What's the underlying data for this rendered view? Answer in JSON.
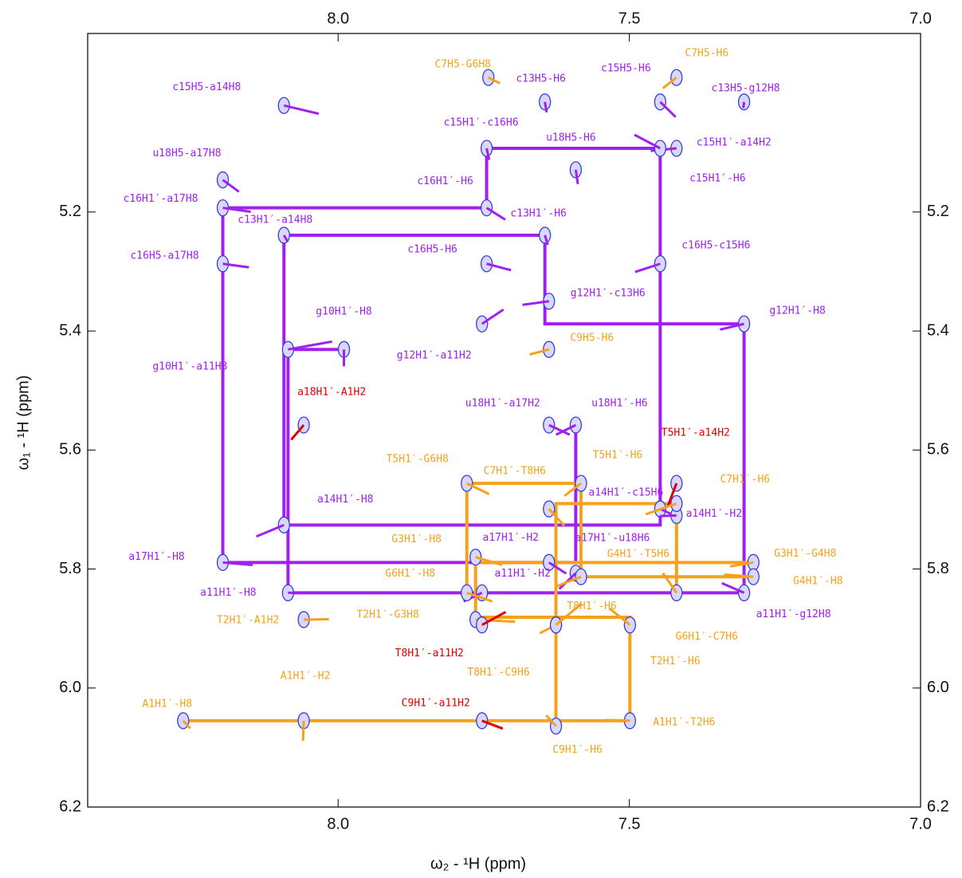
{
  "chart_data": {
    "type": "nmr2d",
    "x_label": "ω₂ - ¹H  (ppm)",
    "y_label": "ω₁ - ¹H  (ppm)",
    "xlim": [
      8.43,
      7.0
    ],
    "ylim": [
      4.9,
      6.2
    ],
    "xticks": [
      {
        "value": 8.0,
        "label": "8.0"
      },
      7.5,
      {
        "value": 7.0,
        "label": "7.0"
      }
    ],
    "yticks": [
      5.2,
      5.4,
      5.6,
      5.8,
      {
        "value": 6.0,
        "label": "6.0"
      },
      6.2
    ],
    "contour_color": "#3a3ae0",
    "peaks": [
      {
        "label": "c15H5-a14H8",
        "x": 8.093,
        "y": 5.021,
        "color": "#a020f0"
      },
      {
        "label": "u18H5-a17H8",
        "x": 8.198,
        "y": 5.146,
        "color": "#a020f0"
      },
      {
        "label": "c16H1′-a17H8",
        "x": 8.198,
        "y": 5.193,
        "color": "#a020f0"
      },
      {
        "label": "c13H1′-a14H8",
        "x": 8.093,
        "y": 5.239,
        "color": "#a020f0"
      },
      {
        "label": "c16H5-a17H8",
        "x": 8.198,
        "y": 5.287,
        "color": "#a020f0"
      },
      {
        "label": "g10H1′-H8",
        "x": 7.99,
        "y": 5.431,
        "color": "#a020f0"
      },
      {
        "label": "g10H1′-a11H8",
        "x": 8.086,
        "y": 5.431,
        "color": "#a020f0"
      },
      {
        "label": "a14H1′-H8",
        "x": 8.093,
        "y": 5.726,
        "color": "#a020f0"
      },
      {
        "label": "a17H1′-H8",
        "x": 8.198,
        "y": 5.789,
        "color": "#a020f0"
      },
      {
        "label": "a11H1′-H8",
        "x": 8.086,
        "y": 5.84,
        "color": "#a020f0"
      },
      {
        "label": "C7H5-G6H8",
        "x": 7.742,
        "y": 4.974,
        "color": "#f5a21b"
      },
      {
        "label": "c13H5-H6",
        "x": 7.645,
        "y": 5.015,
        "color": "#a020f0"
      },
      {
        "label": "c15H5-H6",
        "x": 7.447,
        "y": 5.015,
        "color": "#a020f0"
      },
      {
        "label": "C7H5-H6",
        "x": 7.419,
        "y": 4.974,
        "color": "#f5a21b"
      },
      {
        "label": "c13H5-g12H8",
        "x": 7.303,
        "y": 5.015,
        "color": "#a020f0"
      },
      {
        "label": "c15H1′-c16H6",
        "x": 7.745,
        "y": 5.093,
        "color": "#a020f0"
      },
      {
        "label": "u18H5-H6",
        "x": 7.592,
        "y": 5.129,
        "color": "#a020f0"
      },
      {
        "label": "c15H1′-a14H2",
        "x": 7.419,
        "y": 5.093,
        "color": "#a020f0"
      },
      {
        "label": "c15H1′-H6",
        "x": 7.447,
        "y": 5.093,
        "color": "#a020f0"
      },
      {
        "label": "c16H1′-H6",
        "x": 7.745,
        "y": 5.193,
        "color": "#a020f0"
      },
      {
        "label": "c13H1′-H6",
        "x": 7.645,
        "y": 5.239,
        "color": "#a020f0"
      },
      {
        "label": "c16H5-H6",
        "x": 7.745,
        "y": 5.287,
        "color": "#a020f0"
      },
      {
        "label": "c16H5-c15H6",
        "x": 7.447,
        "y": 5.287,
        "color": "#a020f0"
      },
      {
        "label": "g12H1′-c13H6",
        "x": 7.638,
        "y": 5.35,
        "color": "#a020f0"
      },
      {
        "label": "g12H1′-H8",
        "x": 7.303,
        "y": 5.388,
        "color": "#a020f0"
      },
      {
        "label": "g12H1′-a11H2",
        "x": 7.753,
        "y": 5.388,
        "color": "#a020f0"
      },
      {
        "label": "C9H5-H6",
        "x": 7.638,
        "y": 5.431,
        "color": "#f5a21b"
      },
      {
        "label": "a18H1′-A1H2",
        "x": 8.059,
        "y": 5.558,
        "color": "#e00000"
      },
      {
        "label": "u18H1′-a17H2",
        "x": 7.638,
        "y": 5.558,
        "color": "#a020f0"
      },
      {
        "label": "u18H1′-H6",
        "x": 7.592,
        "y": 5.558,
        "color": "#a020f0"
      },
      {
        "label": "T5H1′-a14H2",
        "x": 7.419,
        "y": 5.656,
        "color": "#e00000"
      },
      {
        "label": "a14H1′-c15H6",
        "x": 7.447,
        "y": 5.699,
        "color": "#a020f0"
      },
      {
        "label": "a14H1′-H2",
        "x": 7.419,
        "y": 5.71,
        "color": "#a020f0"
      },
      {
        "label": "a17H1′-H2",
        "x": 7.638,
        "y": 5.789,
        "color": "#a020f0"
      },
      {
        "label": "a17H1′-u18H6",
        "x": 7.592,
        "y": 5.807,
        "color": "#a020f0"
      },
      {
        "label": "a11H1′-H2",
        "x": 7.753,
        "y": 5.84,
        "color": "#a020f0"
      },
      {
        "label": "a11H1′-g12H8",
        "x": 7.303,
        "y": 5.84,
        "color": "#a020f0"
      },
      {
        "label": "T5H1′-G6H8",
        "x": 7.779,
        "y": 5.656,
        "color": "#f5a21b"
      },
      {
        "label": "C7H1′-T8H6",
        "x": 7.638,
        "y": 5.699,
        "color": "#f5a21b"
      },
      {
        "label": "T5H1′-H6",
        "x": 7.583,
        "y": 5.656,
        "color": "#f5a21b"
      },
      {
        "label": "C7H1′-H6",
        "x": 7.419,
        "y": 5.69,
        "color": "#f5a21b"
      },
      {
        "label": "G3H1′-H8",
        "x": 7.764,
        "y": 5.78,
        "color": "#f5a21b"
      },
      {
        "label": "G4H1′-T5H6",
        "x": 7.583,
        "y": 5.813,
        "color": "#f5a21b"
      },
      {
        "label": "G3H1′-G4H8",
        "x": 7.287,
        "y": 5.789,
        "color": "#f5a21b"
      },
      {
        "label": "G4H1′-H8",
        "x": 7.287,
        "y": 5.813,
        "color": "#f5a21b"
      },
      {
        "label": "G6H1′-H8",
        "x": 7.779,
        "y": 5.84,
        "color": "#f5a21b"
      },
      {
        "label": "T2H1′-A1H2",
        "x": 8.059,
        "y": 5.885,
        "color": "#f5a21b"
      },
      {
        "label": "T2H1′-G3H8",
        "x": 7.764,
        "y": 5.885,
        "color": "#f5a21b"
      },
      {
        "label": "T8H1′-H6",
        "x": 7.626,
        "y": 5.894,
        "color": "#f5a21b"
      },
      {
        "label": "G6H1′-C7H6",
        "x": 7.419,
        "y": 5.84,
        "color": "#f5a21b"
      },
      {
        "label": "T8H1′-a11H2",
        "x": 7.753,
        "y": 5.894,
        "color": "#e00000"
      },
      {
        "label": "T2H1′-H6",
        "x": 7.499,
        "y": 5.894,
        "color": "#f5a21b"
      },
      {
        "label": "T8H1′-C9H6",
        "x": 7.626,
        "y": 5.894,
        "color": "#f5a21b"
      },
      {
        "label": "A1H1′-H2",
        "x": 8.059,
        "y": 6.055,
        "color": "#f5a21b"
      },
      {
        "label": "A1H1′-H8",
        "x": 8.266,
        "y": 6.055,
        "color": "#f5a21b"
      },
      {
        "label": "C9H1′-a11H2",
        "x": 7.753,
        "y": 6.055,
        "color": "#e00000"
      },
      {
        "label": "A1H1′-T2H6",
        "x": 7.499,
        "y": 6.055,
        "color": "#f5a21b"
      },
      {
        "label": "C9H1′-H6",
        "x": 7.626,
        "y": 6.064,
        "color": "#f5a21b"
      }
    ],
    "walks": [
      {
        "color": "#a020f0",
        "x": [
          8.198,
          8.198,
          7.745,
          7.745,
          7.447,
          7.447,
          8.093,
          8.093,
          7.645,
          7.645,
          7.303,
          7.303,
          8.086,
          8.086,
          7.99
        ],
        "y": [
          5.789,
          5.193,
          5.193,
          5.093,
          5.093,
          5.726,
          5.726,
          5.239,
          5.239,
          5.388,
          5.388,
          5.84,
          5.84,
          5.431,
          5.431
        ]
      },
      {
        "color": "#a020f0",
        "x": [
          8.198,
          7.592,
          7.592
        ],
        "y": [
          5.789,
          5.789,
          5.558
        ]
      },
      {
        "color": "#f5a21b",
        "x": [
          8.266,
          7.499,
          7.499,
          7.764,
          7.764,
          7.287,
          7.287,
          7.583,
          7.583,
          7.779,
          7.779
        ],
        "y": [
          6.055,
          6.055,
          5.881,
          5.881,
          5.789,
          5.789,
          5.813,
          5.813,
          5.656,
          5.656,
          5.84
        ]
      },
      {
        "color": "#f5a21b",
        "x": [
          7.419,
          7.419,
          7.626,
          7.626
        ],
        "y": [
          5.84,
          5.69,
          5.69,
          6.064
        ]
      }
    ]
  }
}
